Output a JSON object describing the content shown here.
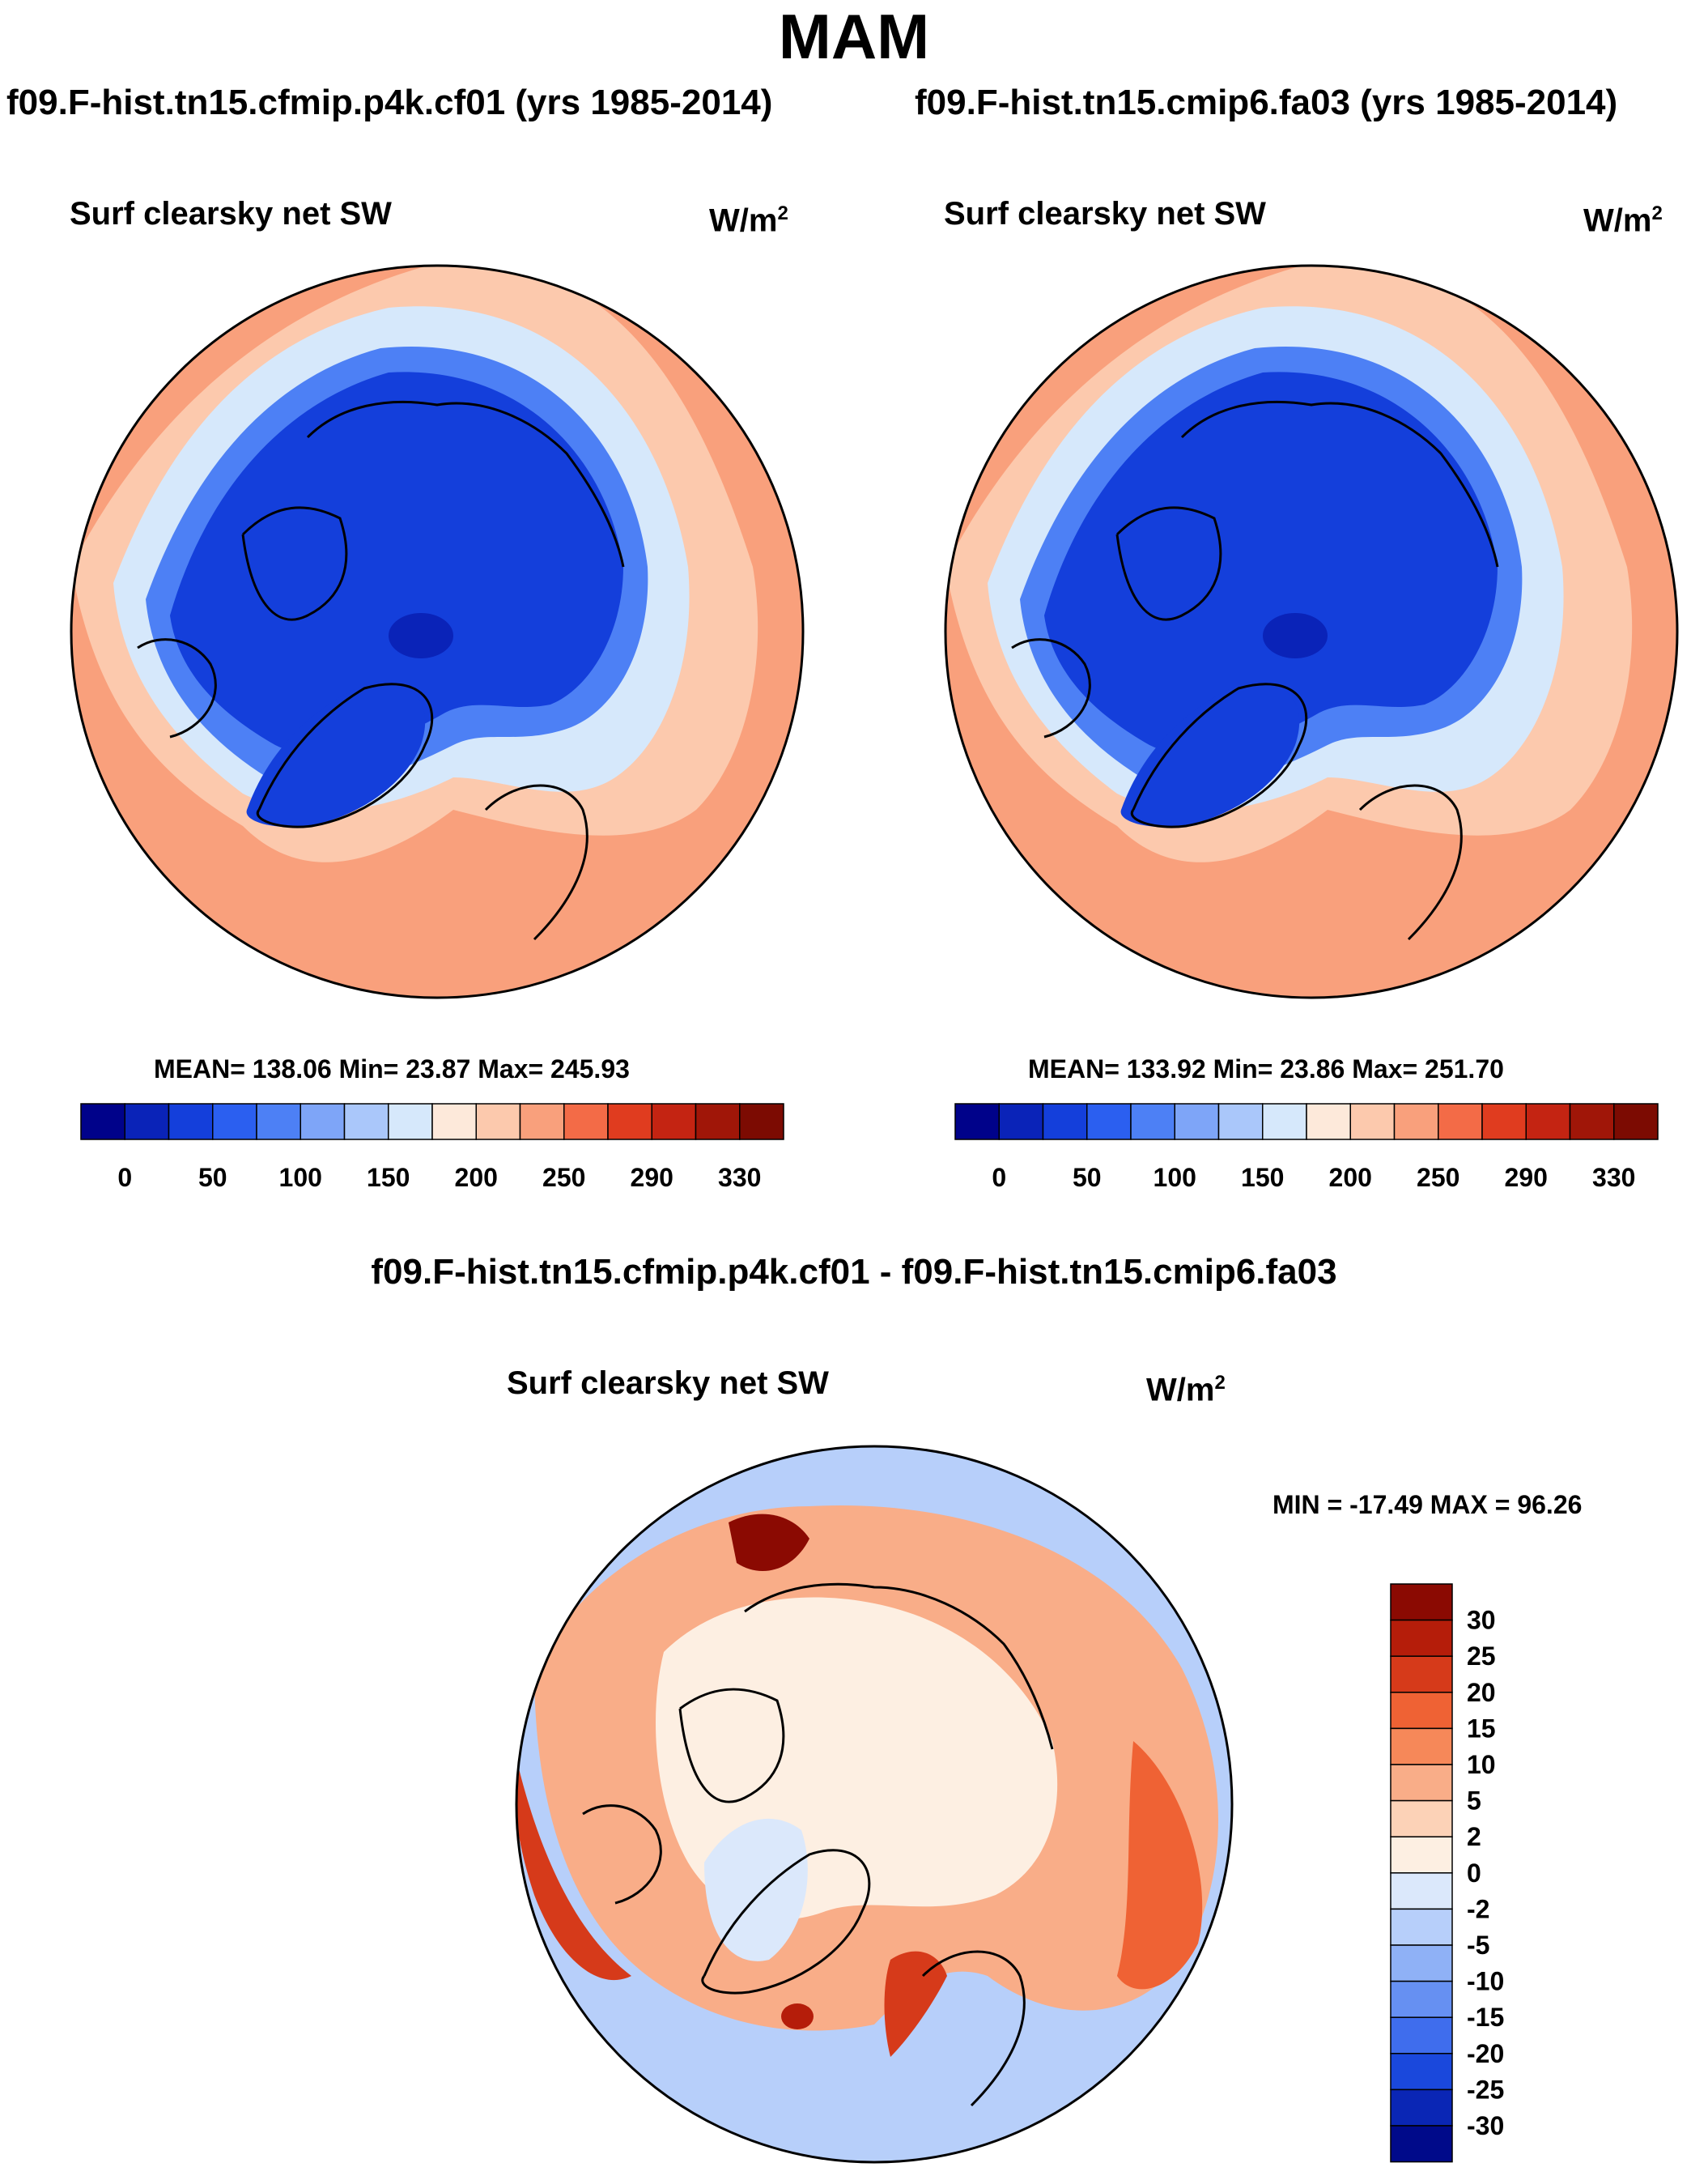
{
  "chart_data": [
    {
      "type": "polar_map",
      "season": "MAM",
      "title": "f09.F-hist.tn15.cfmip.p4k.cf01 (yrs 1985-2014)",
      "variable": "Surf clearsky net SW",
      "units": "W/m",
      "units_sup": "2",
      "stats": {
        "text": "MEAN= 138.06  Min=  23.87  Max= 245.93",
        "mean": 138.06,
        "min": 23.87,
        "max": 245.93
      },
      "colorbar": {
        "labels": [
          "0",
          "50",
          "100",
          "150",
          "200",
          "250",
          "290",
          "330"
        ],
        "colors": [
          "#00028a",
          "#0a23b8",
          "#143fdb",
          "#2b5ff0",
          "#4d80f5",
          "#7ea5f8",
          "#aac7fa",
          "#d6e8fb",
          "#fde9da",
          "#fcc9ad",
          "#f9a07c",
          "#f36b47",
          "#e03c1f",
          "#c42412",
          "#a01608",
          "#7c0b02"
        ]
      },
      "regions": {
        "arctic_value_approx": 30,
        "greenland_value_approx": 40,
        "midlatitude_value_approx": 220
      }
    },
    {
      "type": "polar_map",
      "title": "f09.F-hist.tn15.cmip6.fa03 (yrs 1985-2014)",
      "variable": "Surf clearsky net SW",
      "units": "W/m",
      "units_sup": "2",
      "stats": {
        "text": "MEAN= 133.92  Min=  23.86  Max= 251.70",
        "mean": 133.92,
        "min": 23.86,
        "max": 251.7
      },
      "colorbar": {
        "labels": [
          "0",
          "50",
          "100",
          "150",
          "200",
          "250",
          "290",
          "330"
        ],
        "colors": [
          "#00028a",
          "#0a23b8",
          "#143fdb",
          "#2b5ff0",
          "#4d80f5",
          "#7ea5f8",
          "#aac7fa",
          "#d6e8fb",
          "#fde9da",
          "#fcc9ad",
          "#f9a07c",
          "#f36b47",
          "#e03c1f",
          "#c42412",
          "#a01608",
          "#7c0b02"
        ]
      }
    },
    {
      "type": "polar_map_difference",
      "title": "f09.F-hist.tn15.cfmip.p4k.cf01 - f09.F-hist.tn15.cmip6.fa03",
      "variable": "Surf clearsky net SW",
      "units": "W/m",
      "units_sup": "2",
      "stats": {
        "text": "MIN = -17.49 MAX =  96.26",
        "min": -17.49,
        "max": 96.26
      },
      "colorbar": {
        "labels": [
          "30",
          "25",
          "20",
          "15",
          "10",
          "5",
          "2",
          "0",
          "-2",
          "-5",
          "-10",
          "-15",
          "-20",
          "-25",
          "-30"
        ],
        "colors": [
          "#8b0a02",
          "#b51d0a",
          "#d63a1a",
          "#ef6234",
          "#f68859",
          "#f9ad88",
          "#fcd2b7",
          "#fdefe2",
          "#dbe8fb",
          "#b7cffa",
          "#8fb1f6",
          "#6690f2",
          "#3f6ded",
          "#1a48dc",
          "#0a26b5",
          "#000a8a"
        ]
      }
    }
  ]
}
